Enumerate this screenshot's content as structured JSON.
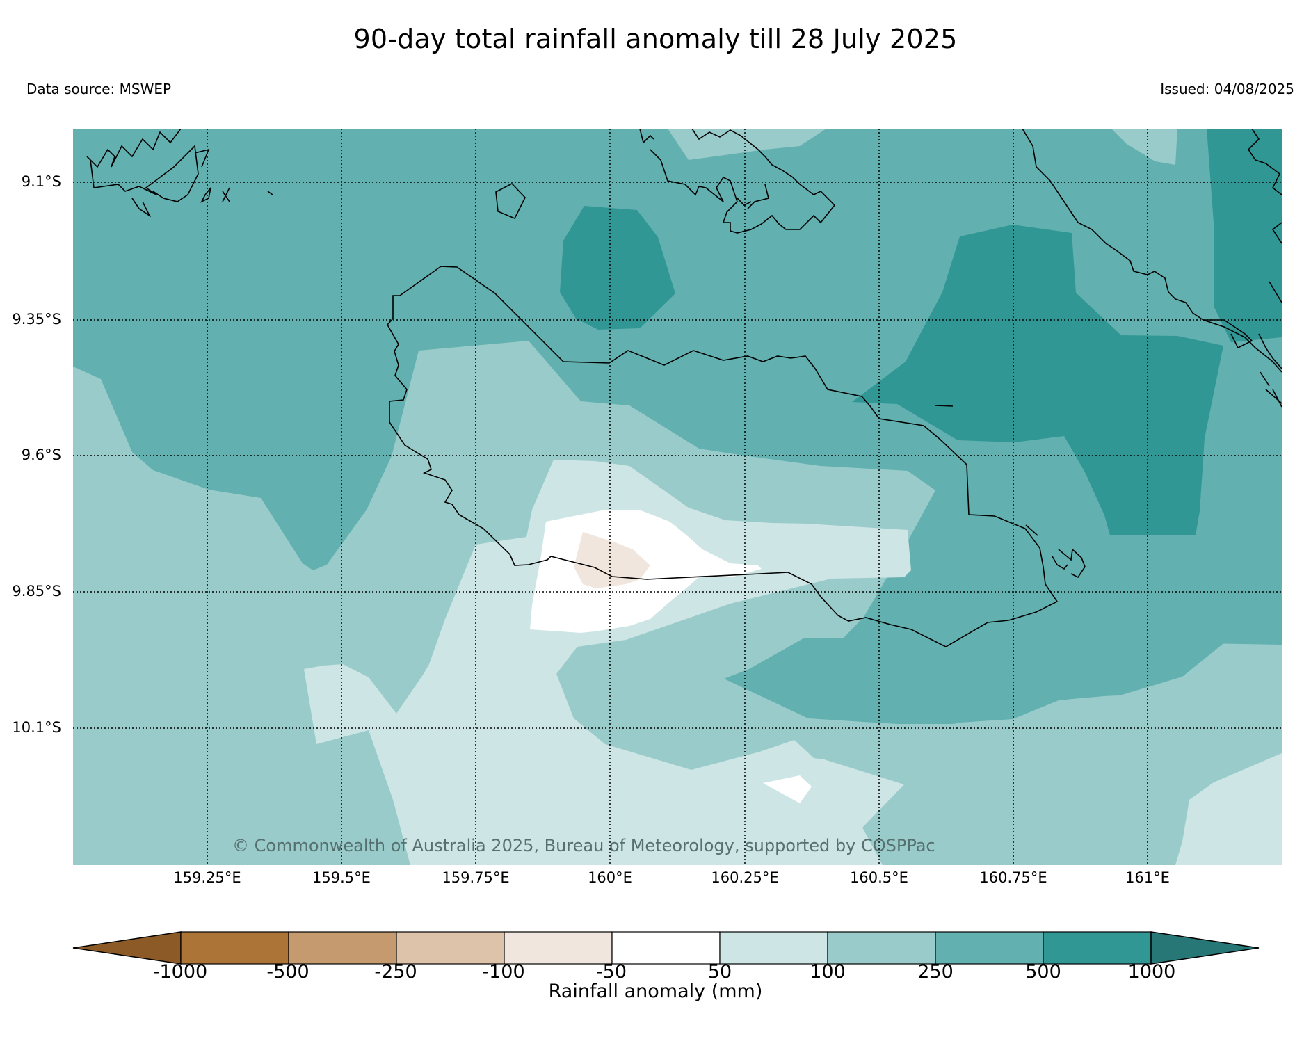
{
  "header": {
    "title": "90-day total rainfall anomaly till 28 July 2025",
    "data_source": "Data source: MSWEP",
    "issued": "Issued: 04/08/2025"
  },
  "map": {
    "latitude_labels": [
      "9.1°S",
      "9.35°S",
      "9.6°S",
      "9.85°S",
      "10.1°S"
    ],
    "longitude_labels": [
      "159.25°E",
      "159.5°E",
      "159.75°E",
      "160°E",
      "160.25°E",
      "160.5°E",
      "160.75°E",
      "161°E"
    ],
    "copyright": "© Commonwealth of Australia 2025, Bureau of Meteorology, supported by COSPPac",
    "grid": true
  },
  "colorbar": {
    "title": "Rainfall anomaly (mm)",
    "tick_labels": [
      "-1000",
      "-500",
      "-250",
      "-100",
      "-50",
      "50",
      "100",
      "250",
      "500",
      "1000"
    ],
    "colors": [
      "#8c5a26",
      "#ad7438",
      "#c49a6e",
      "#dcc3aa",
      "#f1e6dd",
      "#ffffff",
      "#cde5e4",
      "#9acbcb",
      "#62b0af",
      "#319795",
      "#267775"
    ]
  }
}
